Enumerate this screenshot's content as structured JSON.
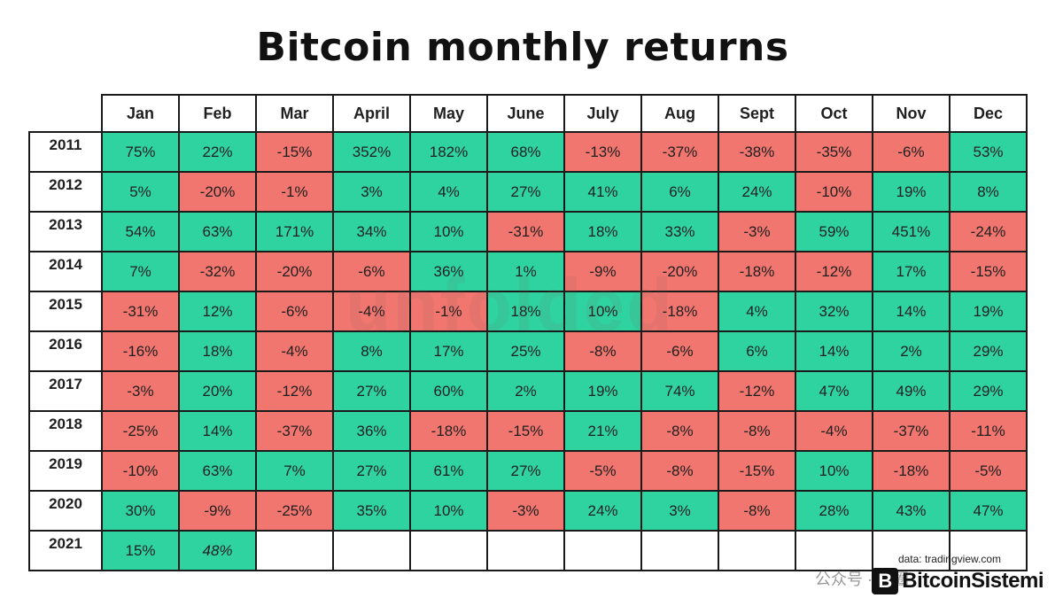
{
  "chart_data": {
    "type": "table",
    "title": "Bitcoin monthly returns",
    "columns": [
      "Jan",
      "Feb",
      "Mar",
      "April",
      "May",
      "June",
      "July",
      "Aug",
      "Sept",
      "Oct",
      "Nov",
      "Dec"
    ],
    "rows": [
      {
        "year": "2011",
        "values": [
          "75%",
          "22%",
          "-15%",
          "352%",
          "182%",
          "68%",
          "-13%",
          "-37%",
          "-38%",
          "-35%",
          "-6%",
          "53%"
        ]
      },
      {
        "year": "2012",
        "values": [
          "5%",
          "-20%",
          "-1%",
          "3%",
          "4%",
          "27%",
          "41%",
          "6%",
          "24%",
          "-10%",
          "19%",
          "8%"
        ]
      },
      {
        "year": "2013",
        "values": [
          "54%",
          "63%",
          "171%",
          "34%",
          "10%",
          "-31%",
          "18%",
          "33%",
          "-3%",
          "59%",
          "451%",
          "-24%"
        ]
      },
      {
        "year": "2014",
        "values": [
          "7%",
          "-32%",
          "-20%",
          "-6%",
          "36%",
          "1%",
          "-9%",
          "-20%",
          "-18%",
          "-12%",
          "17%",
          "-15%"
        ]
      },
      {
        "year": "2015",
        "values": [
          "-31%",
          "12%",
          "-6%",
          "-4%",
          "-1%",
          "18%",
          "10%",
          "-18%",
          "4%",
          "32%",
          "14%",
          "19%"
        ]
      },
      {
        "year": "2016",
        "values": [
          "-16%",
          "18%",
          "-4%",
          "8%",
          "17%",
          "25%",
          "-8%",
          "-6%",
          "6%",
          "14%",
          "2%",
          "29%"
        ]
      },
      {
        "year": "2017",
        "values": [
          "-3%",
          "20%",
          "-12%",
          "27%",
          "60%",
          "2%",
          "19%",
          "74%",
          "-12%",
          "47%",
          "49%",
          "29%"
        ]
      },
      {
        "year": "2018",
        "values": [
          "-25%",
          "14%",
          "-37%",
          "36%",
          "-18%",
          "-15%",
          "21%",
          "-8%",
          "-8%",
          "-4%",
          "-37%",
          "-11%"
        ]
      },
      {
        "year": "2019",
        "values": [
          "-10%",
          "63%",
          "7%",
          "27%",
          "61%",
          "27%",
          "-5%",
          "-8%",
          "-15%",
          "10%",
          "-18%",
          "-5%"
        ]
      },
      {
        "year": "2020",
        "values": [
          "30%",
          "-9%",
          "-25%",
          "35%",
          "10%",
          "-3%",
          "24%",
          "3%",
          "-8%",
          "28%",
          "43%",
          "47%"
        ]
      },
      {
        "year": "2021",
        "values": [
          "15%",
          "48%",
          "",
          "",
          "",
          "",
          "",
          "",
          "",
          "",
          "",
          ""
        ]
      }
    ],
    "italic_cells": [
      [
        10,
        1
      ]
    ],
    "colors": {
      "positive": "#2fd3a0",
      "negative": "#f0766f",
      "empty": "#ffffff"
    }
  },
  "source_note": "data: tradingview.com",
  "watermark": "unfolded",
  "footer_mark": "公众号 · 币圈",
  "brand": {
    "icon": "bitcoin-logo-icon",
    "mark_glyph": "B",
    "name": "BitcoinSistemi"
  }
}
